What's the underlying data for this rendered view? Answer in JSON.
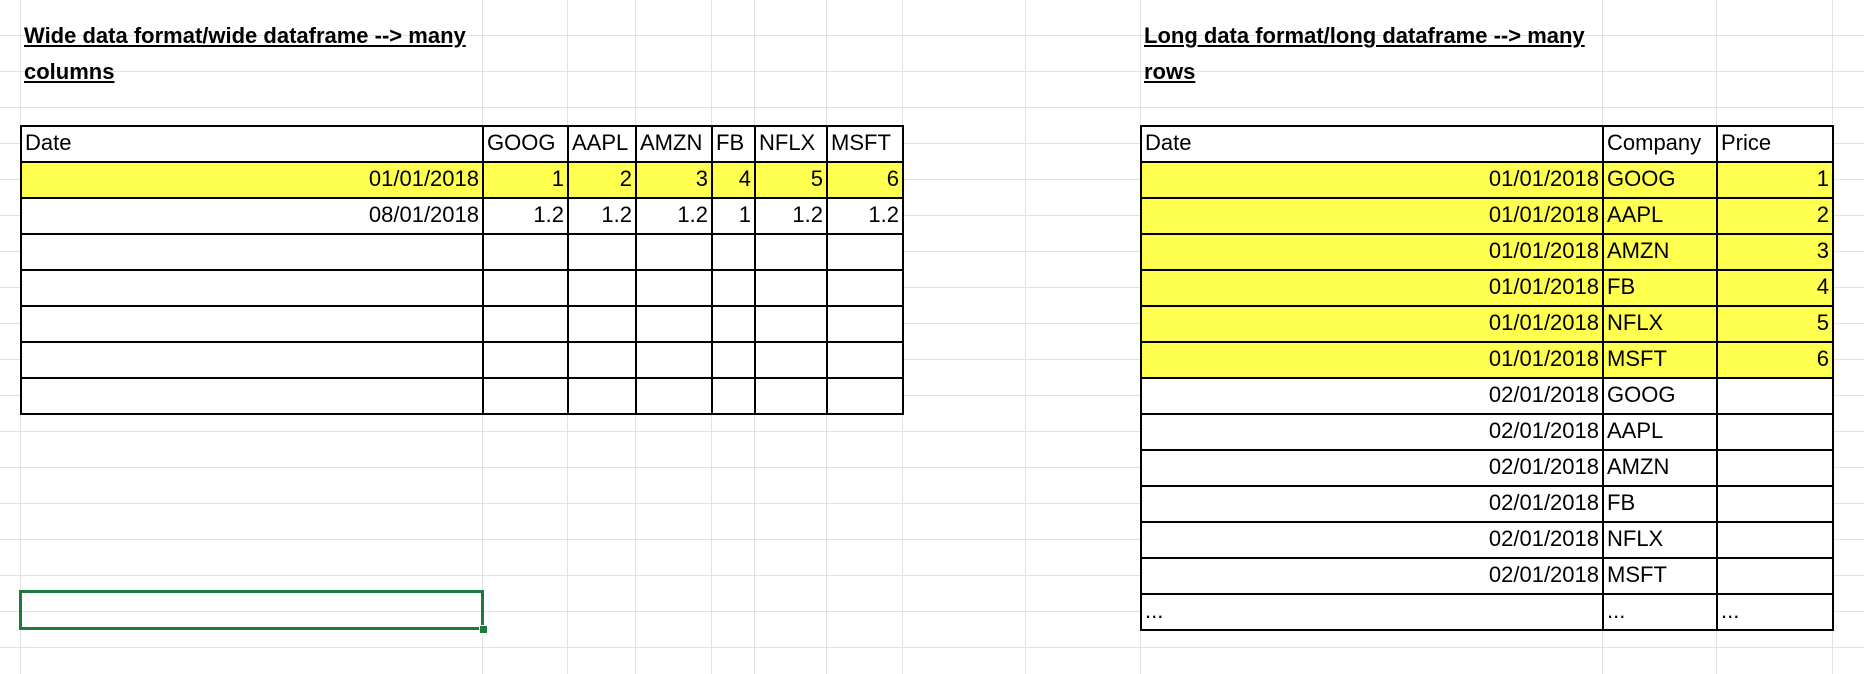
{
  "wide": {
    "heading_line1": "Wide data format/wide dataframe --> many",
    "heading_line2": "columns",
    "headers": [
      "Date",
      "GOOG",
      "AAPL",
      "AMZN",
      "FB",
      "NFLX",
      "MSFT"
    ],
    "rows": [
      {
        "highlight": true,
        "cells": [
          "01/01/2018",
          "1",
          "2",
          "3",
          "4",
          "5",
          "6"
        ]
      },
      {
        "highlight": false,
        "cells": [
          "08/01/2018",
          "1.2",
          "1.2",
          "1.2",
          "1",
          "1.2",
          "1.2"
        ]
      },
      {
        "highlight": false,
        "cells": [
          "",
          "",
          "",
          "",
          "",
          "",
          ""
        ]
      },
      {
        "highlight": false,
        "cells": [
          "",
          "",
          "",
          "",
          "",
          "",
          ""
        ]
      },
      {
        "highlight": false,
        "cells": [
          "",
          "",
          "",
          "",
          "",
          "",
          ""
        ]
      },
      {
        "highlight": false,
        "cells": [
          "",
          "",
          "",
          "",
          "",
          "",
          ""
        ]
      },
      {
        "highlight": false,
        "cells": [
          "",
          "",
          "",
          "",
          "",
          "",
          ""
        ]
      }
    ]
  },
  "long": {
    "heading_line1": "Long data format/long dataframe --> many",
    "heading_line2": "rows",
    "headers": [
      "Date",
      "Company",
      "Price"
    ],
    "rows": [
      {
        "highlight": true,
        "cells": [
          "01/01/2018",
          "GOOG",
          "1"
        ]
      },
      {
        "highlight": true,
        "cells": [
          "01/01/2018",
          "AAPL",
          "2"
        ]
      },
      {
        "highlight": true,
        "cells": [
          "01/01/2018",
          "AMZN",
          "3"
        ]
      },
      {
        "highlight": true,
        "cells": [
          "01/01/2018",
          "FB",
          "4"
        ]
      },
      {
        "highlight": true,
        "cells": [
          "01/01/2018",
          "NFLX",
          "5"
        ]
      },
      {
        "highlight": true,
        "cells": [
          "01/01/2018",
          "MSFT",
          "6"
        ]
      },
      {
        "highlight": false,
        "cells": [
          "02/01/2018",
          "GOOG",
          ""
        ]
      },
      {
        "highlight": false,
        "cells": [
          "02/01/2018",
          "AAPL",
          ""
        ]
      },
      {
        "highlight": false,
        "cells": [
          "02/01/2018",
          "AMZN",
          ""
        ]
      },
      {
        "highlight": false,
        "cells": [
          "02/01/2018",
          "FB",
          ""
        ]
      },
      {
        "highlight": false,
        "cells": [
          "02/01/2018",
          "NFLX",
          ""
        ]
      },
      {
        "highlight": false,
        "cells": [
          "02/01/2018",
          "MSFT",
          ""
        ]
      },
      {
        "highlight": false,
        "cells": [
          "...",
          "...",
          "..."
        ]
      }
    ]
  },
  "colors": {
    "highlight": "#ffff4f",
    "gridline": "#e2e2e2",
    "selection": "#1d7a3c"
  }
}
